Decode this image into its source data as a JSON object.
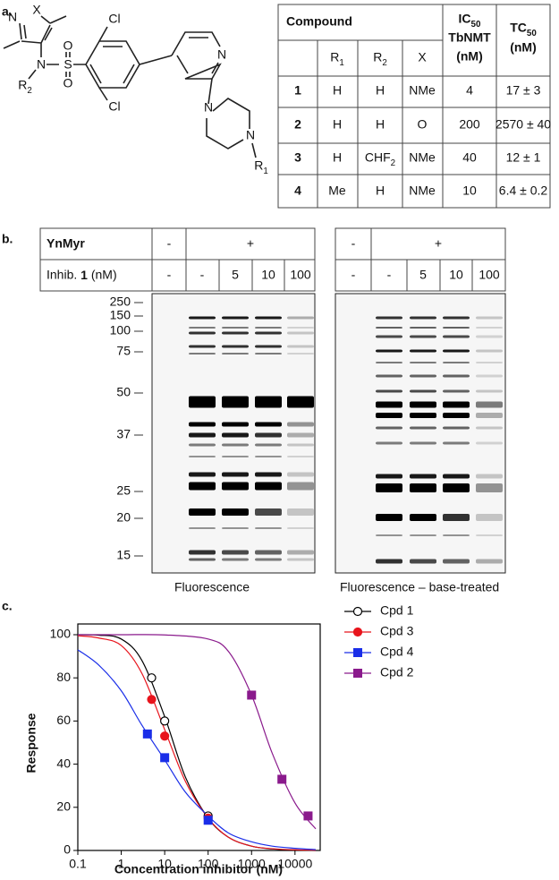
{
  "panel_labels": {
    "a": "a.",
    "b": "b.",
    "c": "c."
  },
  "structure": {
    "atoms": [
      "N",
      "X",
      "N",
      "S",
      "O",
      "O",
      "Cl",
      "Cl",
      "N",
      "N",
      "N"
    ],
    "r1": [
      "R",
      {
        "sub": "1"
      }
    ],
    "r2": [
      "R",
      {
        "sub": "2"
      }
    ]
  },
  "table": {
    "compound_header": "Compound",
    "ic50_header": {
      "lines": [
        [
          "IC",
          {
            "sub": "50"
          }
        ],
        "TbNMT",
        "(nM)"
      ]
    },
    "tc50_header": {
      "lines": [
        [
          "TC",
          {
            "sub": "50"
          }
        ],
        "(nM)"
      ]
    },
    "subheader": [
      [
        "R",
        {
          "sub": "1"
        }
      ],
      [
        "R",
        {
          "sub": "2"
        }
      ],
      "X"
    ],
    "rows": [
      [
        "1",
        "H",
        "H",
        "NMe",
        "4",
        "17 ± 3"
      ],
      [
        "2",
        "H",
        "H",
        "O",
        "200",
        "2570 ± 40"
      ],
      [
        "3",
        "H",
        [
          "CHF",
          {
            "sub": "2"
          }
        ],
        "NMe",
        "40",
        "12 ± 1"
      ],
      [
        "4",
        "Me",
        "H",
        "NMe",
        "10",
        "6.4 ± 0.2"
      ]
    ]
  },
  "gel": {
    "ynmyr_label": "YnMyr",
    "inhib_label": [
      "Inhib. ",
      {
        "b": "1"
      },
      " (nM)"
    ],
    "left": {
      "ynmyr": [
        "-",
        "+"
      ],
      "inhib": [
        "-",
        "-",
        "5",
        "10",
        "100"
      ]
    },
    "right": {
      "ynmyr": [
        "-",
        "+"
      ],
      "inhib": [
        "-",
        "-",
        "5",
        "10",
        "100"
      ]
    },
    "markers": [
      "250",
      "150",
      "100",
      "75",
      "50",
      "37",
      "25",
      "20",
      "15"
    ],
    "captions": [
      "Fluorescence",
      "Fluorescence – base-treated"
    ]
  },
  "chart_data": {
    "type": "line",
    "xlabel": "Concentration inhibitor (nM)",
    "ylabel": "Response",
    "xscale": "log",
    "xlim": [
      0.1,
      30000
    ],
    "ylim": [
      0,
      100
    ],
    "xticks": [
      0.1,
      1,
      10,
      100,
      1000,
      10000
    ],
    "yticks": [
      0,
      20,
      40,
      60,
      80,
      100
    ],
    "legend": "right",
    "series": [
      {
        "name": "Cpd 1",
        "color": "#000000",
        "marker": "circle",
        "filled": false,
        "x": [
          5,
          10,
          100
        ],
        "values": [
          80,
          60,
          16
        ],
        "fit_x": [
          0.1,
          0.3,
          1,
          3,
          10,
          30,
          100,
          300,
          1000,
          3000,
          10000,
          30000
        ],
        "fit_values": [
          100,
          99.8,
          98,
          88,
          62,
          34,
          15,
          6,
          2,
          0.7,
          0.2,
          0
        ]
      },
      {
        "name": "Cpd 3",
        "color": "#e8141c",
        "marker": "circle",
        "filled": true,
        "x": [
          5,
          10,
          100
        ],
        "values": [
          70,
          53,
          15
        ],
        "fit_x": [
          0.1,
          0.3,
          1,
          3,
          10,
          30,
          100,
          300,
          1000,
          3000,
          10000,
          30000
        ],
        "fit_values": [
          99.5,
          98.5,
          95,
          82,
          56,
          32,
          15,
          6,
          2,
          0.8,
          0.3,
          0.1
        ]
      },
      {
        "name": "Cpd 4",
        "color": "#1a2ee8",
        "marker": "square",
        "filled": true,
        "x": [
          4,
          10,
          100
        ],
        "values": [
          54,
          43,
          14
        ],
        "fit_x": [
          0.1,
          0.3,
          1,
          3,
          10,
          30,
          100,
          300,
          1000,
          3000,
          10000,
          30000
        ],
        "fit_values": [
          93,
          86,
          74,
          58,
          42,
          27,
          16,
          8,
          4,
          2,
          1,
          0.4
        ]
      },
      {
        "name": "Cpd 2",
        "color": "#8a1a8c",
        "marker": "square",
        "filled": true,
        "x": [
          1000,
          5000,
          20000
        ],
        "values": [
          72,
          33,
          16
        ],
        "fit_x": [
          0.1,
          1,
          10,
          100,
          300,
          1000,
          3000,
          10000,
          30000
        ],
        "fit_values": [
          100,
          100,
          99.9,
          98,
          92,
          72,
          45,
          22,
          10
        ]
      }
    ]
  }
}
